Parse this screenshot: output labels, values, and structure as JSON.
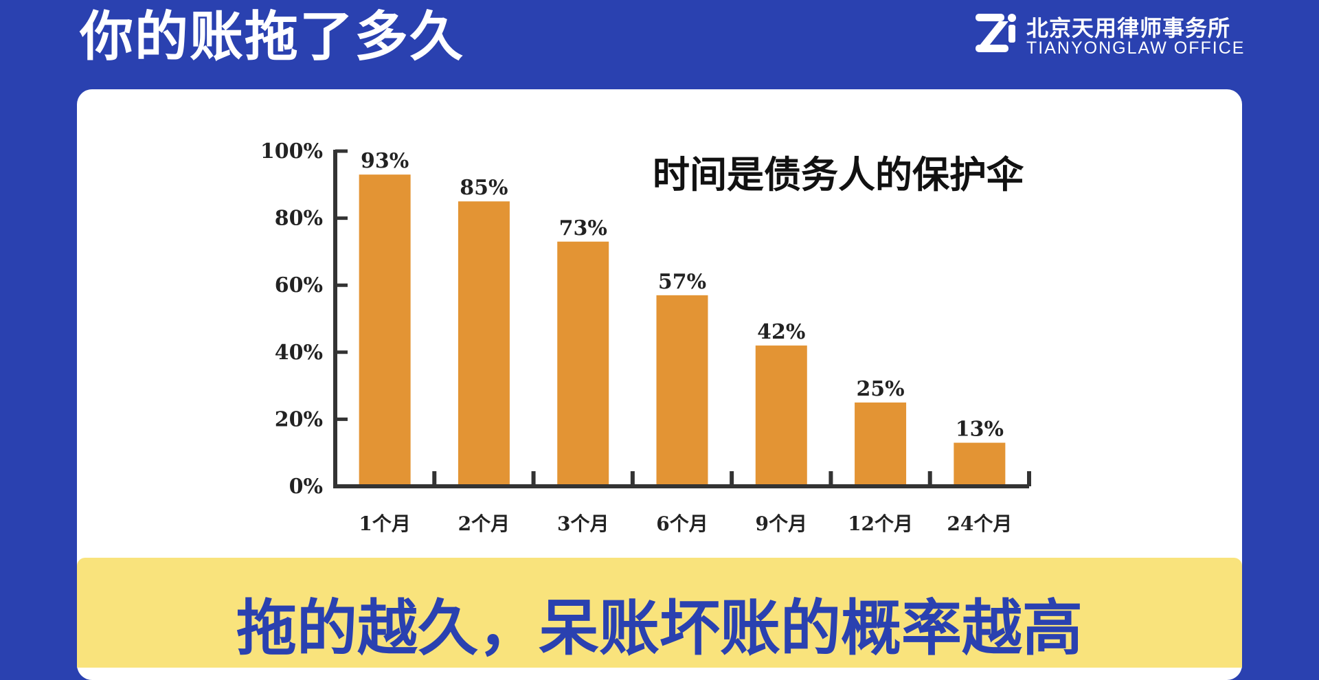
{
  "header": {
    "title": "你的账拖了多久",
    "brand_name": "北京天用律师事务所",
    "brand_en": "TIANYONGLAW OFFICE",
    "brand_logo_icon": "tianyong-logo-icon"
  },
  "colors": {
    "background": "#2a41b0",
    "bar": "#e39434",
    "banner": "#f9e37c",
    "banner_text": "#2a41b0"
  },
  "chart_data": {
    "type": "bar",
    "title": "时间是债务人的保护伞",
    "categories": [
      "1个月",
      "2个月",
      "3个月",
      "6个月",
      "9个月",
      "12个月",
      "24个月"
    ],
    "values": [
      93,
      85,
      73,
      57,
      42,
      25,
      13
    ],
    "value_labels": [
      "93%",
      "85%",
      "73%",
      "57%",
      "42%",
      "25%",
      "13%"
    ],
    "ylim": [
      0,
      100
    ],
    "yticks": [
      0,
      20,
      40,
      60,
      80,
      100
    ],
    "ytick_labels": [
      "0%",
      "20%",
      "40%",
      "60%",
      "80%",
      "100%"
    ],
    "xlabel": "",
    "ylabel": "",
    "grid": false,
    "legend": "none"
  },
  "banner": {
    "text": "拖的越久，呆账坏账的概率越高"
  }
}
